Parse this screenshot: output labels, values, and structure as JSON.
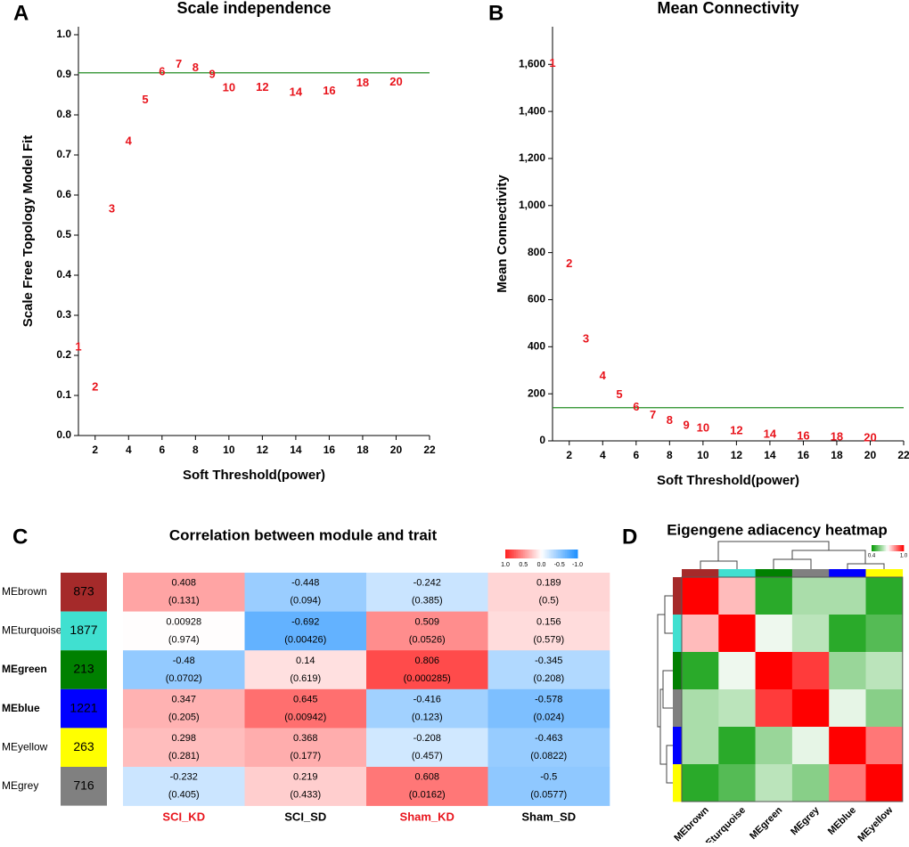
{
  "chart_data": [
    {
      "panel": "A",
      "type": "scatter",
      "title": "Scale independence",
      "x_label": "Soft Threshold(power)",
      "y_label": "Scale Free Topology Model Fit",
      "x": [
        1,
        2,
        3,
        4,
        5,
        6,
        7,
        8,
        9,
        10,
        12,
        14,
        16,
        18,
        20
      ],
      "values": [
        0.22,
        0.12,
        0.564,
        0.733,
        0.837,
        0.907,
        0.925,
        0.916,
        0.9,
        0.866,
        0.868,
        0.855,
        0.859,
        0.879,
        0.881
      ],
      "color": "#e8141c",
      "hline": 0.905,
      "hline_color": "#228b22",
      "xlim": [
        1,
        22
      ],
      "xticks": [
        2,
        4,
        6,
        8,
        10,
        12,
        14,
        16,
        18,
        20,
        22
      ],
      "ylim": [
        0,
        1.02
      ],
      "yticks": [
        {
          "value": 0,
          "label": "0.0"
        },
        0.1,
        0.2,
        0.3,
        0.4,
        0.5,
        0.6,
        0.7,
        0.8,
        0.9,
        {
          "value": 1,
          "label": "1.0"
        }
      ]
    },
    {
      "panel": "B",
      "type": "scatter",
      "title": "Mean Connectivity",
      "x_label": "Soft Threshold(power)",
      "y_label": "Mean Connectivity",
      "x": [
        1,
        2,
        3,
        4,
        5,
        6,
        7,
        8,
        9,
        10,
        12,
        14,
        16,
        18,
        20
      ],
      "values": [
        1603,
        752,
        431,
        275,
        195,
        141,
        107,
        84,
        65,
        53,
        42,
        27,
        19,
        15,
        11
      ],
      "color": "#e8141c",
      "hline": 141,
      "hline_color": "#228b22",
      "xlim": [
        1,
        22
      ],
      "xticks": [
        2,
        4,
        6,
        8,
        10,
        12,
        14,
        16,
        18,
        20,
        22
      ],
      "ylim": [
        0,
        1760
      ],
      "yticks": [
        0,
        200,
        400,
        600,
        800,
        {
          "value": 1000,
          "label": "1,000"
        },
        {
          "value": 1200,
          "label": "1,200"
        },
        {
          "value": 1400,
          "label": "1,400"
        },
        {
          "value": 1600,
          "label": "1,600"
        }
      ]
    },
    {
      "panel": "C",
      "type": "module_trait",
      "title": "Correlation between module and trait",
      "modules": [
        {
          "name": "MEbrown",
          "color": "#a52a2a",
          "count": 873,
          "bold": false
        },
        {
          "name": "MEturquoise",
          "color": "#40e0d0",
          "count": 1877,
          "bold": false
        },
        {
          "name": "MEgreen",
          "color": "#008000",
          "count": 213,
          "bold": true
        },
        {
          "name": "MEblue",
          "color": "#0000ff",
          "count": 1221,
          "bold": true
        },
        {
          "name": "MEyellow",
          "color": "#ffff00",
          "count": 263,
          "bold": false
        },
        {
          "name": "MEgrey",
          "color": "#808080",
          "count": 716,
          "bold": false
        }
      ],
      "traits": [
        {
          "name": "SCI_KD",
          "color": "#e8141c"
        },
        {
          "name": "SCI_SD",
          "color": "#000000"
        },
        {
          "name": "Sham_KD",
          "color": "#e8141c"
        },
        {
          "name": "Sham_SD",
          "color": "#000000"
        }
      ],
      "values": [
        [
          0.408,
          -0.448,
          -0.242,
          0.189
        ],
        [
          0.00928,
          -0.692,
          0.509,
          0.156
        ],
        [
          -0.48,
          0.14,
          0.806,
          -0.345
        ],
        [
          0.347,
          0.645,
          -0.416,
          -0.578
        ],
        [
          0.298,
          0.368,
          -0.208,
          -0.463
        ],
        [
          -0.232,
          0.219,
          0.608,
          -0.5
        ]
      ],
      "p_values": [
        [
          "(0.131)",
          "(0.094)",
          "(0.385)",
          "(0.5)"
        ],
        [
          "(0.974)",
          "(0.00426)",
          "(0.0526)",
          "(0.579)"
        ],
        [
          "(0.0702)",
          "(0.619)",
          "(0.000285)",
          "(0.208)"
        ],
        [
          "(0.205)",
          "(0.00942)",
          "(0.123)",
          "(0.024)"
        ],
        [
          "(0.281)",
          "(0.177)",
          "(0.457)",
          "(0.0822)"
        ],
        [
          "(0.405)",
          "(0.433)",
          "(0.0162)",
          "(0.0577)"
        ]
      ],
      "colors": {
        "high": "#ff2020",
        "mid": "#ffffff",
        "low": "#1e90ff"
      },
      "colorbar_ticks": [
        {
          "value": 1,
          "label": "1.0"
        },
        0.5,
        {
          "value": 0,
          "label": "0.0"
        },
        -0.5,
        {
          "value": -1,
          "label": "-1.0"
        }
      ]
    },
    {
      "panel": "D",
      "type": "adjacency",
      "title": "Eigengene adiacency heatmap",
      "labels": [
        "MEbrown",
        "MEturquoise",
        "MEgreen",
        "MEgrey",
        "MEblue",
        "MEyellow"
      ],
      "label_colors": [
        "#a52a2a",
        "#40e0d0",
        "#008000",
        "#808080",
        "#0000ff",
        "#ffff00"
      ],
      "values": [
        [
          1,
          0.78,
          0.45,
          0.6,
          0.6,
          0.45
        ],
        [
          0.78,
          1,
          0.68,
          0.62,
          0.45,
          0.5
        ],
        [
          0.45,
          0.68,
          1,
          0.93,
          0.58,
          0.62
        ],
        [
          0.6,
          0.62,
          0.93,
          1,
          0.67,
          0.56
        ],
        [
          0.6,
          0.45,
          0.58,
          0.67,
          1,
          0.86
        ],
        [
          0.45,
          0.5,
          0.62,
          0.56,
          0.86,
          1
        ]
      ],
      "zlim": [
        0.4,
        1
      ],
      "colors": {
        "low": "#009900",
        "mid": "#ffffff",
        "high": "#ff0000"
      },
      "colorbar_ticks": [
        0.4,
        {
          "value": 1,
          "label": "1.0"
        }
      ]
    }
  ]
}
